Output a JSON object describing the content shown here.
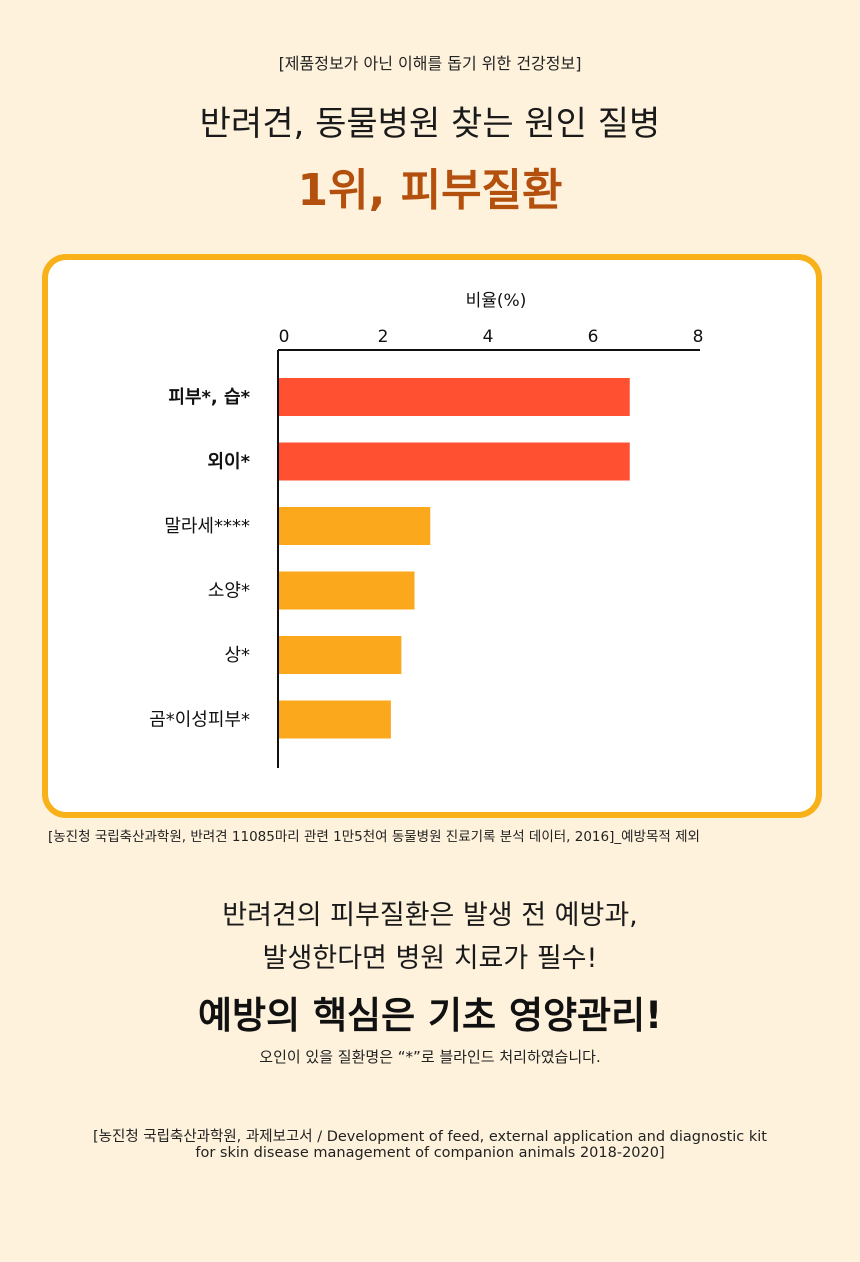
{
  "header": {
    "disclaimer": "[제품정보가 아닌 이해를 돕기 위한 건강정보]",
    "headline": "반려견, 동물병원 찾는 원인 질병",
    "headline_accent": "1위, 피부질환"
  },
  "chart_data": {
    "type": "bar",
    "orientation": "horizontal",
    "xlabel": "비율(%)",
    "xlim": [
      0,
      8
    ],
    "xticks": [
      "0",
      "2",
      "4",
      "6",
      "8"
    ],
    "categories": [
      "피부*, 습*",
      "외이*",
      "말라세****",
      "소양*",
      "상*",
      "곰*이성피부*"
    ],
    "values": [
      6.7,
      6.7,
      2.9,
      2.6,
      2.35,
      2.15
    ],
    "bold_categories": [
      0,
      1
    ],
    "colors": {
      "highlight": "#ff5031",
      "normal": "#fba81c",
      "axis": "#111111",
      "card_border": "#f8b118"
    },
    "grid": false,
    "axis_position": "top"
  },
  "source_note": "[농진청 국립축산과학원, 반려견 11085마리 관련 1만5천여 동물병원 진료기록 분석 데이터, 2016]_예방목적 제외",
  "body": {
    "line1": "반려견의 피부질환은 발생 전 예방과,",
    "line2": "발생한다면 병원 치료가 필수!",
    "strong": "예방의 핵심은 기초 영양관리!",
    "note": "오인이 있을 질환명은 “*”로 블라인드 처리하였습니다."
  },
  "reference": {
    "line1": "[농진청 국립축산과학원, 과제보고서 / Development of feed, external application and diagnostic kit",
    "line2": "for skin disease management of companion animals  2018-2020]"
  }
}
